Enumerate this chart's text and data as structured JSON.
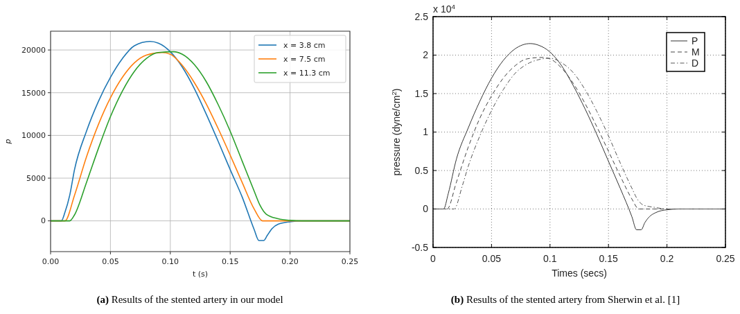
{
  "chart_data": [
    {
      "type": "line",
      "xlabel": "t (s)",
      "ylabel": "p",
      "xlim": [
        0,
        0.25
      ],
      "ylim": [
        -3600,
        22200
      ],
      "xticks": [
        {
          "value": 0,
          "label": "0.00"
        },
        0.05,
        {
          "value": 0.1,
          "label": "0.10"
        },
        0.15,
        {
          "value": 0.2,
          "label": "0.20"
        },
        0.25
      ],
      "yticks": [
        0,
        5000,
        10000,
        15000,
        20000
      ],
      "grid": true,
      "legend": "top right",
      "line_style": "solid",
      "marker": "none",
      "annotations": [
        "(a) Results of the stented artery in our model"
      ],
      "series": [
        {
          "name": "x = 3.8 cm",
          "color": "#1f77b4",
          "x": [
            0,
            0.009,
            0.012,
            0.016,
            0.02,
            0.03,
            0.04,
            0.05,
            0.06,
            0.07,
            0.083,
            0.09,
            0.1,
            0.11,
            0.12,
            0.13,
            0.14,
            0.15,
            0.16,
            0.17,
            0.174,
            0.178,
            0.181,
            0.185,
            0.19,
            0.2,
            0.21,
            0.25
          ],
          "values": [
            0,
            0,
            1000,
            3000,
            6000,
            10500,
            14000,
            16800,
            19000,
            20500,
            21000,
            20800,
            19800,
            18000,
            15500,
            12500,
            9300,
            6000,
            2800,
            -1000,
            -2300,
            -2300,
            -1700,
            -900,
            -400,
            -100,
            0,
            0
          ]
        },
        {
          "name": "x = 7.5 cm",
          "color": "#ff7f0e",
          "x": [
            0,
            0.012,
            0.02,
            0.03,
            0.04,
            0.05,
            0.06,
            0.07,
            0.08,
            0.093,
            0.1,
            0.11,
            0.12,
            0.13,
            0.14,
            0.15,
            0.16,
            0.17,
            0.177,
            0.25
          ],
          "values": [
            0,
            0,
            3000,
            7500,
            11300,
            14400,
            16800,
            18500,
            19400,
            19700,
            19500,
            18200,
            16200,
            13700,
            10800,
            7700,
            4500,
            1400,
            0,
            0
          ]
        },
        {
          "name": "x = 11.3 cm",
          "color": "#2ca02c",
          "x": [
            0,
            0.016,
            0.02,
            0.03,
            0.04,
            0.05,
            0.06,
            0.07,
            0.08,
            0.09,
            0.103,
            0.11,
            0.12,
            0.13,
            0.14,
            0.15,
            0.16,
            0.17,
            0.175,
            0.18,
            0.19,
            0.2,
            0.21,
            0.25
          ],
          "values": [
            0,
            0,
            700,
            4500,
            8500,
            12200,
            15200,
            17500,
            19000,
            19700,
            19800,
            19500,
            18300,
            16300,
            13600,
            10500,
            7000,
            3500,
            1800,
            800,
            250,
            60,
            0,
            0
          ]
        }
      ]
    },
    {
      "type": "line",
      "xlabel": "Times  (secs)",
      "ylabel": "pressure  (dyne/cm$^{2}$)",
      "xlim": [
        0,
        0.25
      ],
      "ylim": [
        -0.5,
        2.5
      ],
      "xticks": [
        0,
        0.05,
        0.1,
        0.15,
        0.2,
        0.25
      ],
      "yticks": [
        -0.5,
        0,
        0.5,
        1,
        1.5,
        2,
        2.5
      ],
      "grid": true,
      "legend": "top right",
      "marker": "none",
      "annotations": [
        "x 10$^{4}$",
        "(b) Results of the stented artery from Sherwin et al. [1]"
      ],
      "series": [
        {
          "name": "P",
          "color": "#333333",
          "line_style": "solid",
          "x": [
            0,
            0.009,
            0.013,
            0.02,
            0.03,
            0.04,
            0.05,
            0.06,
            0.07,
            0.083,
            0.09,
            0.1,
            0.11,
            0.12,
            0.13,
            0.14,
            0.15,
            0.16,
            0.17,
            0.174,
            0.178,
            0.181,
            0.185,
            0.19,
            0.2,
            0.21,
            0.25
          ],
          "values": [
            0,
            0,
            0.2,
            0.65,
            1.05,
            1.4,
            1.7,
            1.93,
            2.08,
            2.15,
            2.13,
            2.04,
            1.86,
            1.6,
            1.3,
            0.97,
            0.62,
            0.27,
            -0.1,
            -0.27,
            -0.27,
            -0.18,
            -0.1,
            -0.05,
            -0.01,
            0,
            0
          ]
        },
        {
          "name": "M",
          "color": "#444444",
          "line_style": "dashed",
          "x": [
            0,
            0.012,
            0.02,
            0.03,
            0.04,
            0.05,
            0.06,
            0.07,
            0.08,
            0.093,
            0.1,
            0.11,
            0.12,
            0.13,
            0.14,
            0.15,
            0.16,
            0.17,
            0.176,
            0.25
          ],
          "values": [
            0,
            0,
            0.35,
            0.8,
            1.18,
            1.47,
            1.7,
            1.86,
            1.95,
            1.97,
            1.95,
            1.83,
            1.63,
            1.37,
            1.07,
            0.75,
            0.43,
            0.13,
            0,
            0
          ]
        },
        {
          "name": "D",
          "color": "#555555",
          "line_style": "dotted",
          "x": [
            0,
            0.018,
            0.025,
            0.03,
            0.04,
            0.05,
            0.06,
            0.07,
            0.08,
            0.09,
            0.1,
            0.11,
            0.12,
            0.13,
            0.14,
            0.15,
            0.16,
            0.17,
            0.175,
            0.18,
            0.19,
            0.2,
            0.25
          ],
          "values": [
            0,
            0,
            0.3,
            0.55,
            0.95,
            1.28,
            1.55,
            1.76,
            1.88,
            1.94,
            1.96,
            1.9,
            1.77,
            1.55,
            1.27,
            0.95,
            0.6,
            0.27,
            0.12,
            0.05,
            0.02,
            0,
            0
          ]
        }
      ]
    }
  ]
}
